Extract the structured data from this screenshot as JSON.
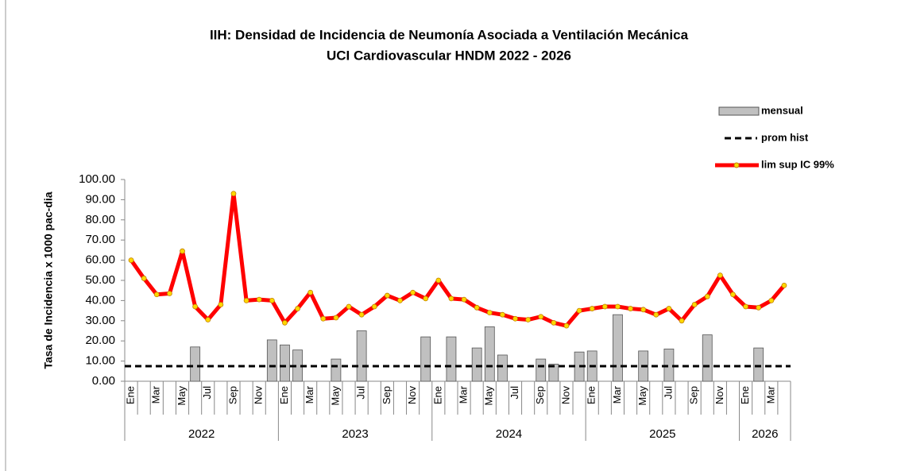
{
  "chart_data": {
    "type": "bar-line",
    "title": "IIH: Densidad de Incidencia de Neumonía Asociada a Ventilación Mecánica",
    "subtitle": "UCI Cardiovascular HNDM 2022 - 2026",
    "y_label": "Tasa de Incidencia x 1000 pac-dia",
    "categories": [
      "Ene",
      null,
      "Mar",
      null,
      "May",
      null,
      "Jul",
      null,
      "Sep",
      null,
      "Nov",
      null,
      "Ene",
      null,
      "Mar",
      null,
      "May",
      null,
      "Jul",
      null,
      "Sep",
      null,
      "Nov",
      null,
      "Ene",
      null,
      "Mar",
      null,
      "May",
      null,
      "Jul",
      null,
      "Sep",
      null,
      "Nov",
      null,
      "Ene",
      null,
      "Mar",
      null,
      "May",
      null,
      "Jul",
      null,
      "Sep",
      null,
      "Nov",
      null,
      "Ene",
      null,
      "Mar",
      null
    ],
    "years": [
      {
        "label": "2022",
        "span": 12
      },
      {
        "label": "2023",
        "span": 12
      },
      {
        "label": "2024",
        "span": 12
      },
      {
        "label": "2025",
        "span": 12
      },
      {
        "label": "2026",
        "span": 4
      }
    ],
    "series": [
      {
        "name": "mensual",
        "type": "bar",
        "color": "#c0c0c0",
        "values": [
          0,
          0,
          0,
          0,
          0,
          17,
          0,
          0,
          0,
          0,
          0,
          20.5,
          18,
          15.5,
          0,
          0,
          11,
          0,
          25,
          0,
          0,
          0,
          0,
          22,
          0,
          22,
          0,
          16.5,
          27,
          13,
          0,
          0,
          11,
          8.5,
          0,
          14.5,
          15,
          0,
          33,
          0,
          15,
          0,
          16,
          0,
          0,
          23,
          0,
          0,
          0,
          16.5,
          0,
          0
        ]
      },
      {
        "name": "prom hist",
        "type": "dashed",
        "color": "#000000",
        "values": [
          7.5,
          7.5,
          7.5,
          7.5,
          7.5,
          7.5,
          7.5,
          7.5,
          7.5,
          7.5,
          7.5,
          7.5,
          7.5,
          7.5,
          7.5,
          7.5,
          7.5,
          7.5,
          7.5,
          7.5,
          7.5,
          7.5,
          7.5,
          7.5,
          7.5,
          7.5,
          7.5,
          7.5,
          7.5,
          7.5,
          7.5,
          7.5,
          7.5,
          7.5,
          7.5,
          7.5,
          7.5,
          7.5,
          7.5,
          7.5,
          7.5,
          7.5,
          7.5,
          7.5,
          7.5,
          7.5,
          7.5,
          7.5,
          7.5,
          7.5,
          7.5,
          7.5
        ]
      },
      {
        "name": "lim sup IC 99%",
        "type": "line",
        "color": "#ff0000",
        "marker_color": "#ffd700",
        "values": [
          60,
          51,
          43,
          43.5,
          64.5,
          37,
          30.5,
          38,
          93,
          40,
          40.5,
          40,
          29,
          36,
          44,
          31,
          31.5,
          37,
          33,
          37,
          42.5,
          40,
          44,
          41,
          50,
          41,
          40.5,
          36.5,
          34,
          33,
          31,
          30.5,
          32,
          29,
          27.5,
          35,
          36,
          37,
          37,
          36,
          35.5,
          33,
          36,
          30,
          38,
          42,
          52.5,
          43,
          37,
          36.5,
          40,
          47.5
        ]
      }
    ],
    "ylim": [
      0,
      100
    ],
    "yticks": [
      {
        "value": 0,
        "label": "0.00"
      },
      {
        "value": 10,
        "label": "10.00"
      },
      {
        "value": 20,
        "label": "20.00"
      },
      {
        "value": 30,
        "label": "30.00"
      },
      {
        "value": 40,
        "label": "40.00"
      },
      {
        "value": 50,
        "label": "50.00"
      },
      {
        "value": 60,
        "label": "60.00"
      },
      {
        "value": 70,
        "label": "70.00"
      },
      {
        "value": 80,
        "label": "80.00"
      },
      {
        "value": 90,
        "label": "90.00"
      },
      {
        "value": 100,
        "label": "100.00"
      }
    ],
    "legend": "upper right"
  }
}
